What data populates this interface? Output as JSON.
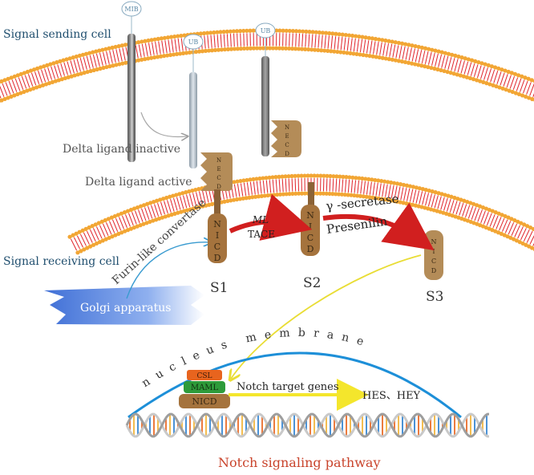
{
  "labels": {
    "sending_cell": "Signal sending cell",
    "receiving_cell": "Signal receiving cell",
    "delta_inactive": "Delta ligand inactive",
    "delta_active": "Delta ligand active",
    "furin": "Furin-like convertase",
    "golgi": "Golgi apparatus",
    "mib": "MIB",
    "ub1": "UB",
    "ub2": "UB",
    "necd": "NECD",
    "nicd": "NICD",
    "ml": "ML",
    "tace": "TACE",
    "gamma": "γ -secretase",
    "presenilin": "Presenilin",
    "s1": "S1",
    "s2": "S2",
    "s3": "S3",
    "nucleus_membrane": "nucleus membrane",
    "csl": "CSL",
    "maml": "MAML",
    "nicd_complex": "NICD",
    "target_genes": "Notch target genes",
    "hes_hey": "HES、HEY",
    "title": "Notch signaling pathway"
  },
  "colors": {
    "cell_text": "#1f4e6e",
    "membrane_head": "#f2a634",
    "membrane_tail": "#e0242a",
    "receptor": "#9b7445",
    "protein_text": "#3b2a14",
    "red_arrow": "#d11f1f",
    "yellow_arrow": "#f4e62c",
    "nucleus_arc": "#1d8fd8",
    "csl": "#e8641e",
    "maml": "#2e9b3a",
    "title": "#c9442c"
  }
}
